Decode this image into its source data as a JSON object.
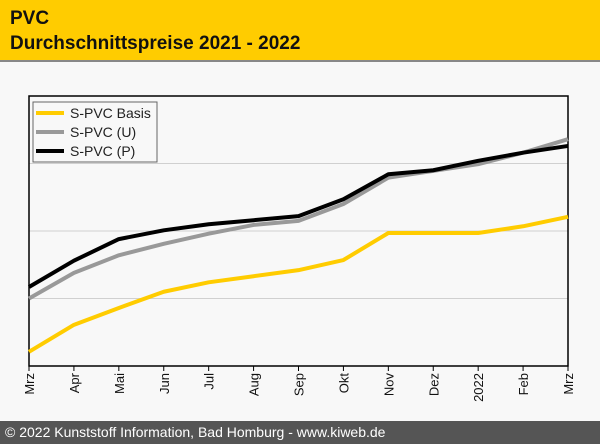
{
  "header": {
    "title": "PVC",
    "subtitle": "Durchschnittspreise 2021 - 2022"
  },
  "footer": {
    "text": "© 2022 Kunststoff Information, Bad Homburg - www.kiweb.de"
  },
  "chart_data": {
    "type": "line",
    "title": "PVC Durchschnittspreise 2021 - 2022",
    "categories": [
      "Mrz",
      "Apr",
      "Mai",
      "Jun",
      "Jul",
      "Aug",
      "Sep",
      "Okt",
      "Nov",
      "Dez",
      "2022",
      "Feb",
      "Mrz"
    ],
    "ylim": [
      0,
      4
    ],
    "grid": true,
    "legend_placement": "top-left",
    "series": [
      {
        "name": "S-PVC Basis",
        "color": "#ffcc00",
        "values": [
          0.21,
          0.61,
          0.86,
          1.1,
          1.24,
          1.33,
          1.42,
          1.57,
          1.97,
          1.97,
          1.97,
          2.07,
          2.21
        ]
      },
      {
        "name": "S-PVC (U)",
        "color": "#999999",
        "values": [
          1.0,
          1.38,
          1.64,
          1.81,
          1.96,
          2.09,
          2.15,
          2.4,
          2.79,
          2.89,
          2.99,
          3.16,
          3.36
        ]
      },
      {
        "name": "S-PVC (P)",
        "color": "#000000",
        "values": [
          1.17,
          1.56,
          1.88,
          2.01,
          2.1,
          2.16,
          2.22,
          2.47,
          2.84,
          2.9,
          3.04,
          3.16,
          3.26
        ]
      }
    ]
  }
}
